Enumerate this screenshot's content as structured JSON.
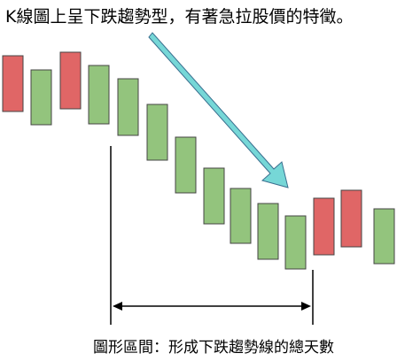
{
  "title": "K線圖上呈下跌趨勢型，有著急拉股價的特徵。",
  "caption": "圖形區間：形成下跌趨勢線的總天數",
  "colors": {
    "bullish": "#e06666",
    "bearish": "#93c47d",
    "outline": "#444444",
    "trend_arrow": "#76d7d7",
    "trend_arrow_outline": "#3a6f8f",
    "line": "#000000"
  }
}
